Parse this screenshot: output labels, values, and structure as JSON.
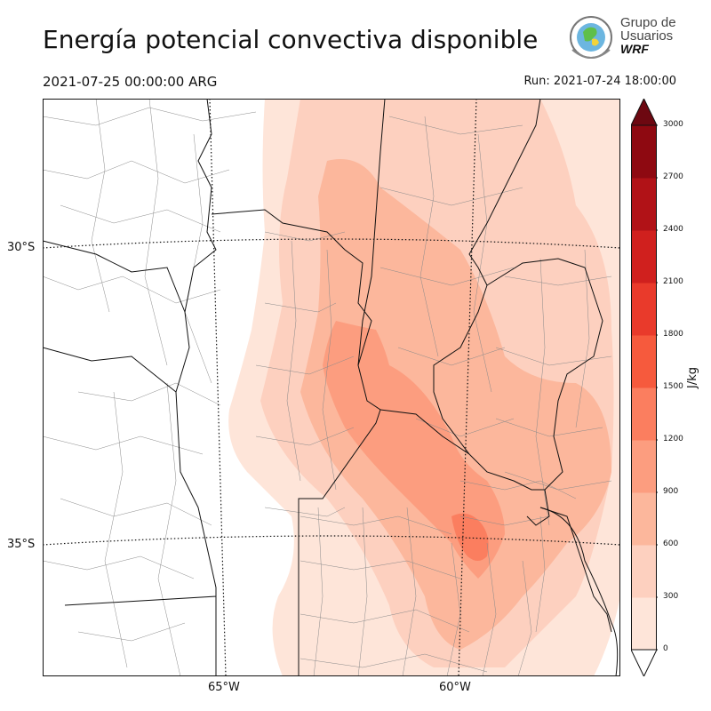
{
  "title": "Energía potencial convectiva disponible",
  "valid_time": "2021-07-25 00:00:00 ARG",
  "run_label": "Run: 2021-07-24 18:00:00",
  "logo": {
    "line1": "Grupo de",
    "line2": "Usuarios",
    "line3": "WRF"
  },
  "axes": {
    "lat_ticks": [
      "30°S",
      "35°S"
    ],
    "lon_ticks": [
      "65°W",
      "60°W"
    ]
  },
  "colorbar": {
    "unit": "J/kg",
    "levels": [
      "0",
      "300",
      "600",
      "900",
      "1200",
      "1500",
      "1800",
      "2100",
      "2400",
      "2700",
      "3000"
    ],
    "colors": [
      "#fee5d9",
      "#fdd0bf",
      "#fcb79c",
      "#fc9d7f",
      "#fb7e5f",
      "#f65a3d",
      "#e93a2b",
      "#d0201e",
      "#b11217",
      "#8e0911",
      "#6d0811"
    ]
  }
}
